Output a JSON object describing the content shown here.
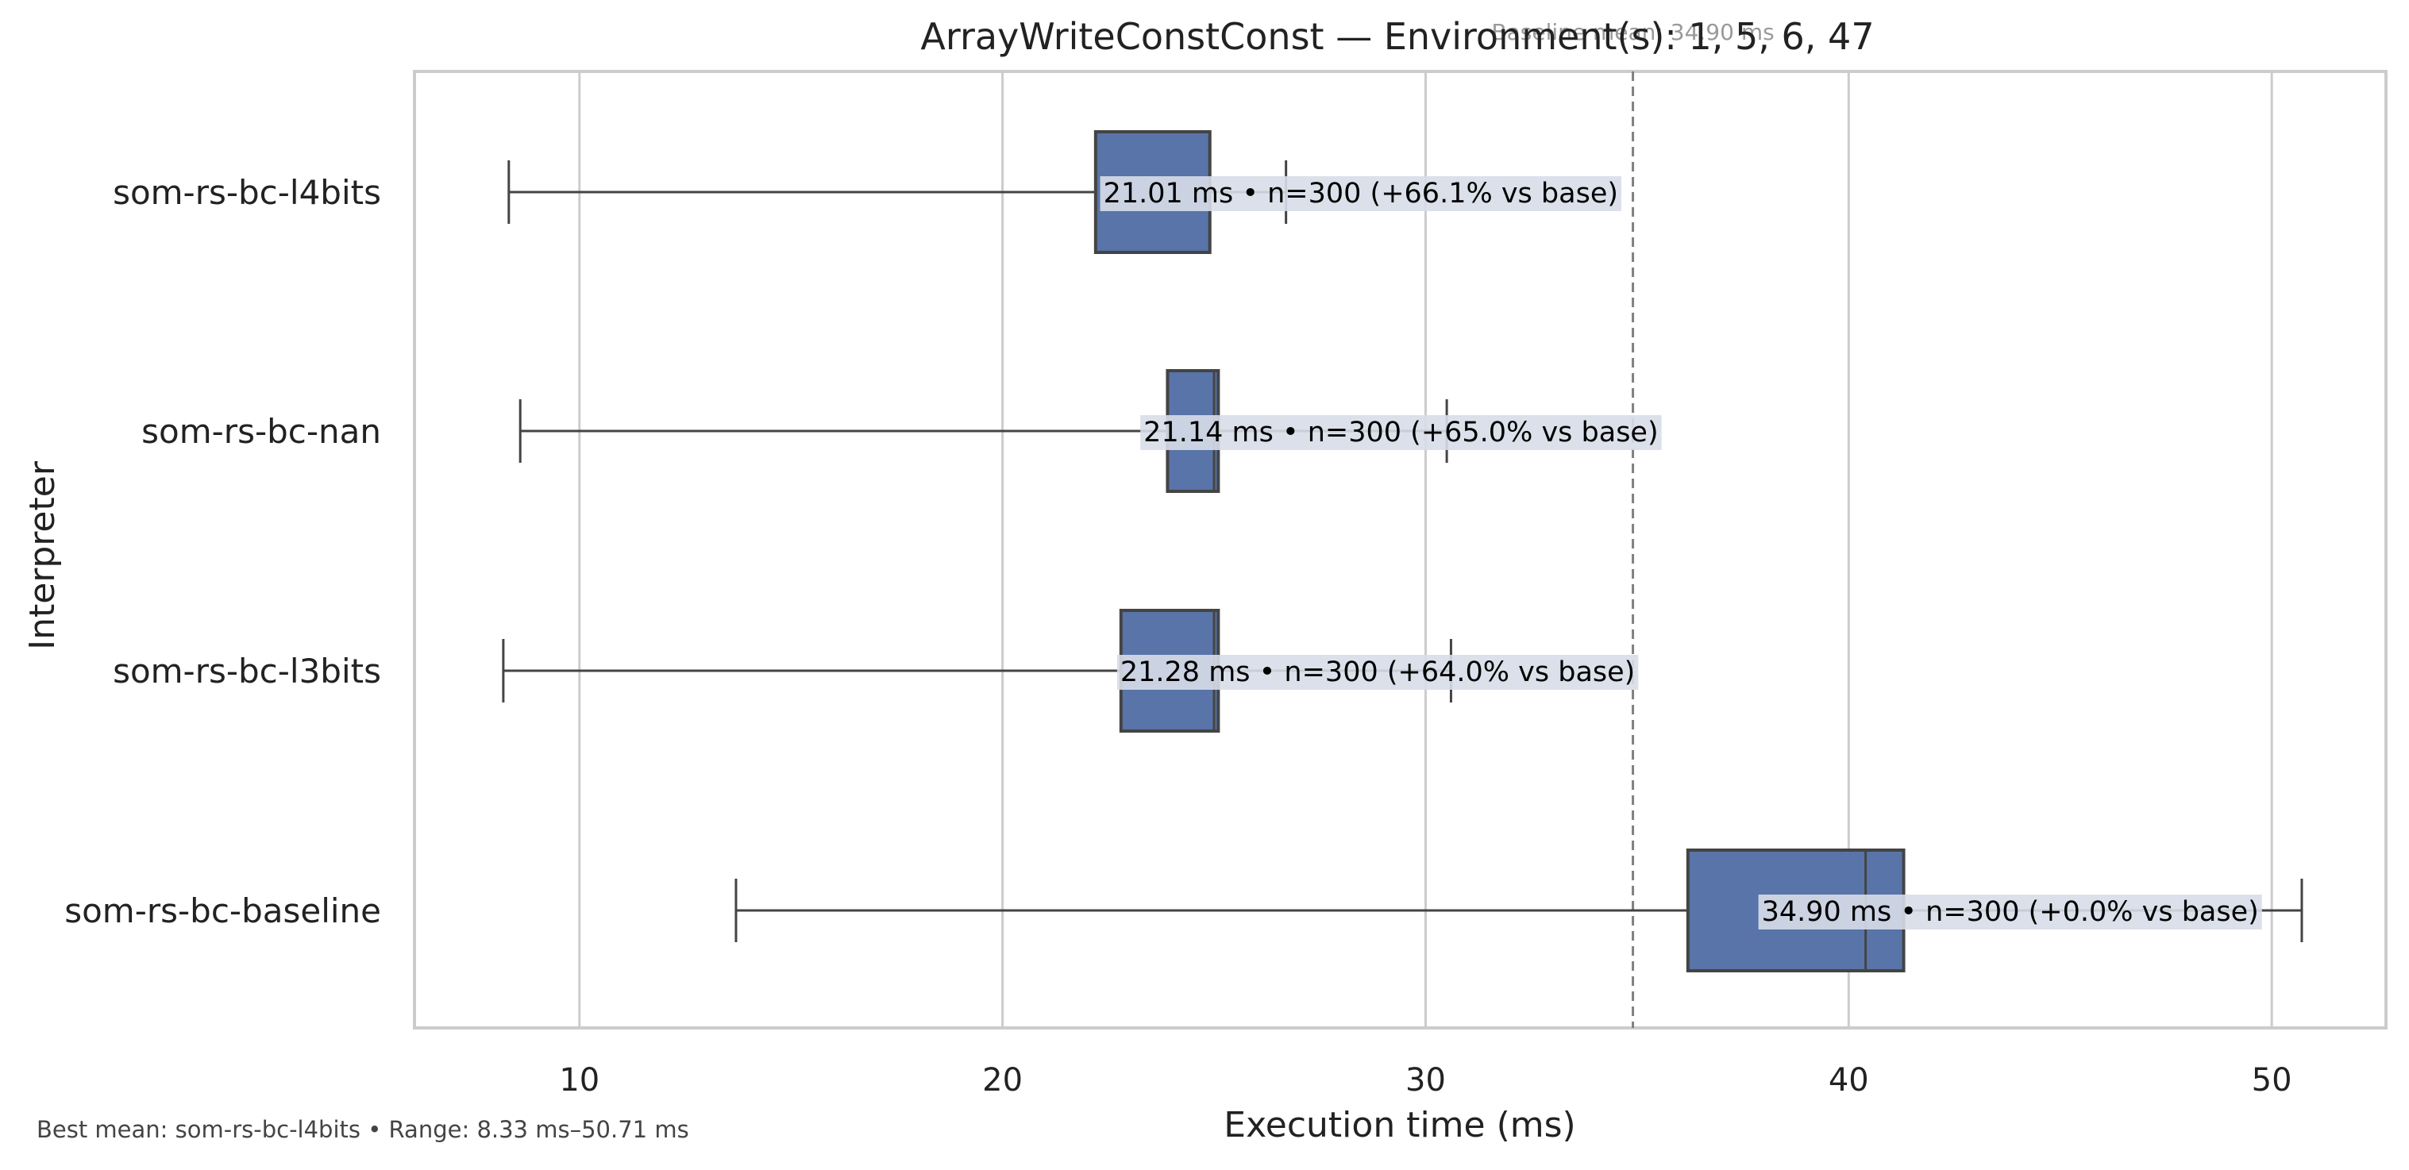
{
  "chart_data": {
    "type": "box",
    "title": "ArrayWriteConstConst — Environment(s): 1, 5, 6, 47",
    "xlabel": "Execution time (ms)",
    "ylabel": "Interpreter",
    "xlim": [
      6.1,
      52.7
    ],
    "xticks": [
      10,
      20,
      30,
      40,
      50
    ],
    "grid": true,
    "baseline": {
      "value": 34.9,
      "label": "Baseline mean: 34.90 ms"
    },
    "series": [
      {
        "name": "som-rs-bc-l4bits",
        "whisker_low": 8.33,
        "q1": 22.2,
        "median": 24.9,
        "q3": 24.9,
        "whisker_high": 26.7,
        "annotation": "21.01 ms • n=300 (+66.1% vs base)"
      },
      {
        "name": "som-rs-bc-nan",
        "whisker_low": 8.6,
        "q1": 23.9,
        "median": 25.0,
        "q3": 25.1,
        "whisker_high": 30.5,
        "annotation": "21.14 ms • n=300 (+65.0% vs base)"
      },
      {
        "name": "som-rs-bc-l3bits",
        "whisker_low": 8.2,
        "q1": 22.8,
        "median": 25.0,
        "q3": 25.1,
        "whisker_high": 30.6,
        "annotation": "21.28 ms • n=300 (+64.0% vs base)"
      },
      {
        "name": "som-rs-bc-baseline",
        "whisker_low": 13.7,
        "q1": 36.2,
        "median": 40.4,
        "q3": 41.3,
        "whisker_high": 50.71,
        "annotation": "34.90 ms • n=300 (+0.0% vs base)"
      }
    ],
    "colors": {
      "box": "#5874a8",
      "box_edge": "#444444",
      "grid": "#cccccc",
      "baseline_line": "#808080",
      "label_bg": "#d8dde8"
    }
  },
  "footer": "Best mean: som-rs-bc-l4bits • Range: 8.33 ms–50.71 ms"
}
